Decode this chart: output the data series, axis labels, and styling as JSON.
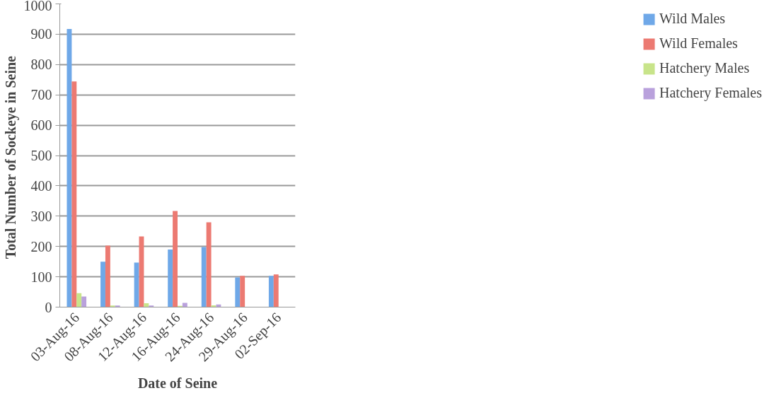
{
  "chart_data": {
    "type": "bar",
    "xlabel": "Date of Seine",
    "ylabel": "Total  Number of Sockeye in Seine",
    "categories": [
      "03-Aug-16",
      "08-Aug-16",
      "12-Aug-16",
      "16-Aug-16",
      "24-Aug-16",
      "29-Aug-16",
      "02-Sep-16"
    ],
    "series": [
      {
        "name": "Wild Males",
        "color": "#6fa8e8",
        "values": [
          917,
          150,
          147,
          190,
          198,
          98,
          103
        ]
      },
      {
        "name": "Wild Females",
        "color": "#ec7a72",
        "values": [
          744,
          203,
          233,
          317,
          280,
          103,
          108
        ]
      },
      {
        "name": "Hatchery Males",
        "color": "#c8e48a",
        "values": [
          46,
          5,
          13,
          4,
          6,
          0,
          0
        ]
      },
      {
        "name": "Hatchery Females",
        "color": "#b9a1dc",
        "values": [
          35,
          5,
          5,
          14,
          9,
          0,
          0
        ]
      }
    ],
    "ylim": [
      0,
      1000
    ],
    "yticks": [
      0,
      100,
      200,
      300,
      400,
      500,
      600,
      700,
      800,
      900,
      1000
    ],
    "grid": "y",
    "legend": "right"
  }
}
